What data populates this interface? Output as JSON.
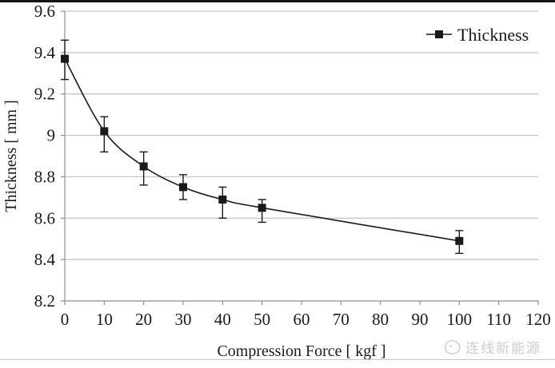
{
  "chart_data": {
    "type": "line",
    "title": "",
    "xlabel": "Compression Force [ kgf ]",
    "ylabel": "Thickness [ mm ]",
    "xlim": [
      0,
      120
    ],
    "ylim": [
      8.2,
      9.6
    ],
    "xticks": [
      0,
      10,
      20,
      30,
      40,
      50,
      60,
      70,
      80,
      90,
      100,
      110,
      120
    ],
    "yticks": [
      8.2,
      8.4,
      8.6,
      8.8,
      9,
      9.2,
      9.4,
      9.6
    ],
    "ytick_labels": [
      "8.2",
      "8.4",
      "8.6",
      "8.8",
      "9",
      "9.2",
      "9.4",
      "9.6"
    ],
    "grid": "horizontal-only",
    "legend_position": "top-right-inside",
    "series": [
      {
        "name": "Thickness",
        "marker": "filled-square",
        "line_style": "smooth",
        "x": [
          0,
          10,
          20,
          30,
          40,
          50,
          100
        ],
        "y": [
          9.37,
          9.02,
          8.85,
          8.75,
          8.69,
          8.65,
          8.49
        ],
        "err_plus": [
          0.09,
          0.07,
          0.07,
          0.06,
          0.06,
          0.04,
          0.05
        ],
        "err_minus": [
          0.1,
          0.1,
          0.09,
          0.06,
          0.09,
          0.07,
          0.06
        ]
      }
    ]
  },
  "watermark": {
    "text": "连线新能源"
  },
  "colors": {
    "series": "#1a1a1a",
    "text": "#1a1a1a",
    "grid": "#c3c3c3",
    "axis": "#8f8f8f",
    "watermark": "#d2d2d2",
    "top_border": "#141414",
    "bottom_line": "#c6c6c6"
  }
}
